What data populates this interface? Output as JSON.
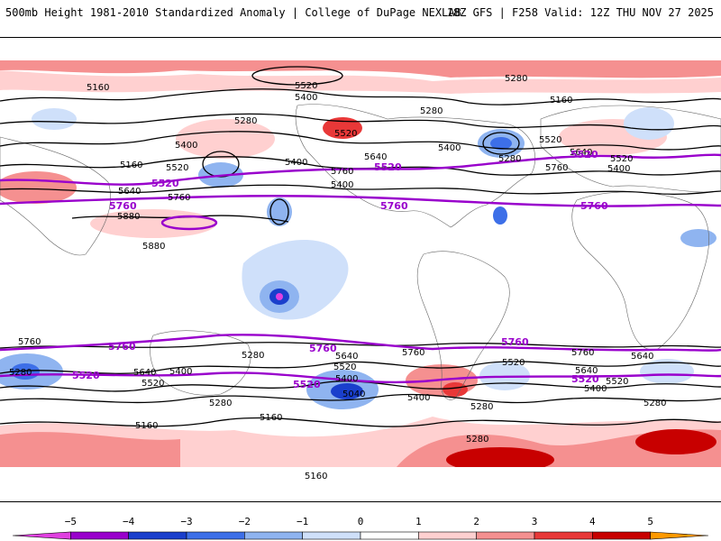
{
  "header": {
    "title": "500mb Height 1981-2010 Standardized Anomaly | College of DuPage NEXLAB",
    "run_info": "18Z GFS | F258 Valid: 12Z THU NOV 27 2025"
  },
  "map": {
    "contour_labels_black": [
      "5160",
      "5520",
      "5400",
      "5280",
      "5520",
      "5280",
      "5160",
      "5400",
      "5280",
      "5400",
      "5520",
      "5400",
      "5280",
      "5520",
      "5400",
      "5160",
      "5520",
      "5640",
      "5640",
      "5760",
      "5640",
      "5400",
      "5880",
      "5880",
      "5760",
      "5760",
      "5760",
      "5280",
      "5640",
      "5400",
      "5520",
      "5640",
      "5520",
      "5400",
      "5280",
      "5520",
      "5400",
      "5640",
      "5760",
      "5040",
      "5280",
      "5160",
      "5280",
      "5160",
      "5160",
      "5280",
      "5520",
      "5640",
      "5400",
      "5760",
      "5280"
    ],
    "contour_labels_purple": [
      "5520",
      "5520",
      "5520",
      "5760",
      "5760",
      "5760",
      "5760",
      "5760",
      "5760",
      "5520",
      "5520",
      "5520"
    ]
  },
  "legend": {
    "ticks": [
      "−5",
      "−4",
      "−3",
      "−2",
      "−1",
      "0",
      "1",
      "2",
      "3",
      "4",
      "5"
    ],
    "colors": [
      "#e040e0",
      "#9900cc",
      "#1a3fcc",
      "#3d6fe8",
      "#8fb4f0",
      "#cfe0fa",
      "#ffffff",
      "#ffd0d0",
      "#f59090",
      "#e83838",
      "#c80000",
      "#ff9900"
    ]
  }
}
